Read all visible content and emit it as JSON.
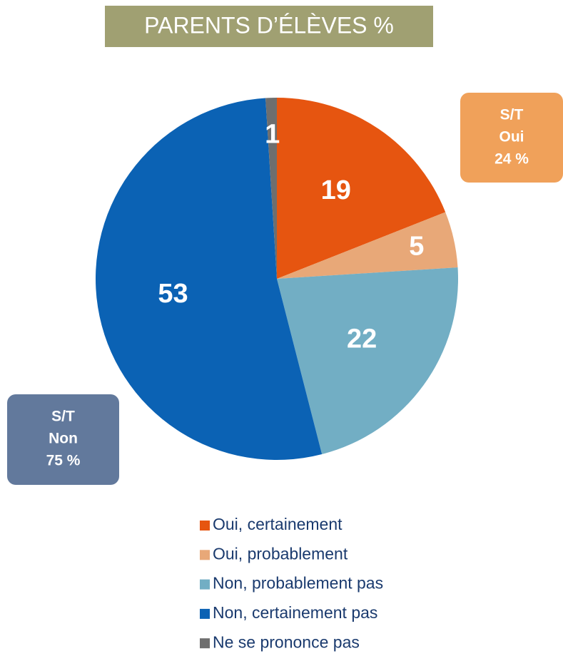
{
  "chart_data": {
    "type": "pie",
    "title": "PARENTS D’ÉLÈVES %",
    "categories": [
      "Oui, certainement",
      "Oui, probablement",
      "Non, probablement pas",
      "Non, certainement pas",
      "Ne se prononce pas"
    ],
    "values": [
      19,
      5,
      22,
      53,
      1
    ],
    "colors": [
      "#e65510",
      "#e8a878",
      "#72aec4",
      "#0b62b4",
      "#6e6e6e"
    ],
    "annotations": [
      {
        "lines": [
          "S/T",
          "Oui",
          "24 %"
        ],
        "color": "#f0a15a"
      },
      {
        "lines": [
          "S/T",
          "Non",
          "75 %"
        ],
        "color": "#62799c"
      }
    ]
  }
}
